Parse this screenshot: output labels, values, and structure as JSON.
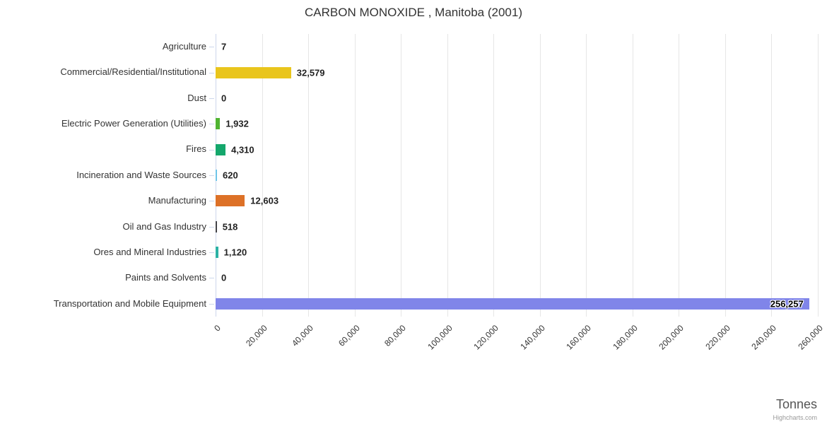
{
  "chart_data": {
    "type": "bar",
    "title": "CARBON MONOXIDE , Manitoba (2001)",
    "xlabel": "Tonnes",
    "ylabel": "",
    "categories": [
      "Agriculture",
      "Commercial/Residential/Institutional",
      "Dust",
      "Electric Power Generation (Utilities)",
      "Fires",
      "Incineration and Waste Sources",
      "Manufacturing",
      "Oil and Gas Industry",
      "Ores and Mineral Industries",
      "Paints and Solvents",
      "Transportation and Mobile Equipment"
    ],
    "values": [
      7,
      32579,
      0,
      1932,
      4310,
      620,
      12603,
      518,
      1120,
      0,
      256257
    ],
    "labels": [
      "7",
      "32,579",
      "0",
      "1,932",
      "4,310",
      "620",
      "12,603",
      "518",
      "1,120",
      "0",
      "256,257"
    ],
    "colors": [
      "#7cb5ec",
      "#e9c51c",
      "#cccccc",
      "#50b432",
      "#14a76c",
      "#6ec5e8",
      "#dd7127",
      "#434348",
      "#2cb2a5",
      "#cccccc",
      "#8085e9"
    ],
    "xlim": [
      0,
      260000
    ],
    "tick_interval": 20000,
    "tick_labels": [
      "0",
      "20,000",
      "40,000",
      "60,000",
      "80,000",
      "100,000",
      "120,000",
      "140,000",
      "160,000",
      "180,000",
      "200,000",
      "220,000",
      "240,000",
      "260,000"
    ],
    "grid": true,
    "legend": false
  },
  "credits": {
    "label": "Highcharts.com"
  }
}
